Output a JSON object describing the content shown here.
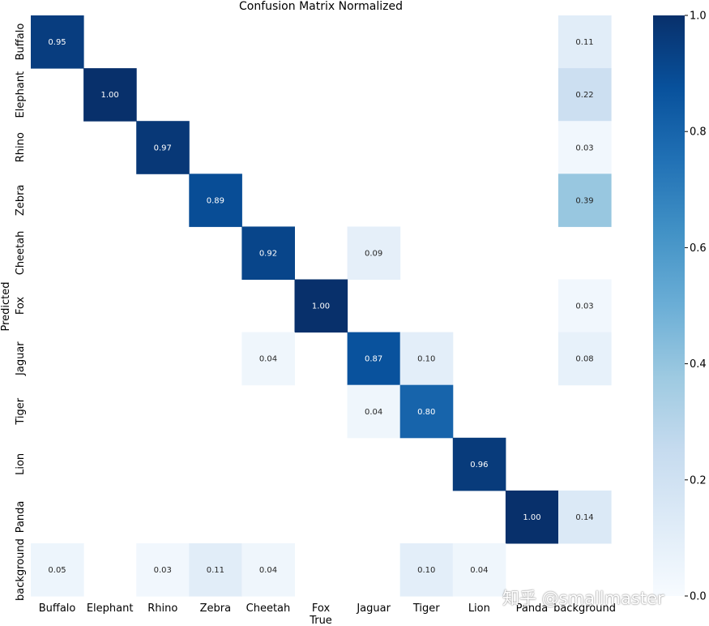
{
  "chart_data": {
    "type": "heatmap",
    "title": "Confusion Matrix Normalized",
    "xlabel": "True",
    "ylabel": "Predicted",
    "x_categories": [
      "Buffalo",
      "Elephant",
      "Rhino",
      "Zebra",
      "Cheetah",
      "Fox",
      "Jaguar",
      "Tiger",
      "Lion",
      "Panda",
      "background"
    ],
    "y_categories": [
      "Buffalo",
      "Elephant",
      "Rhino",
      "Zebra",
      "Cheetah",
      "Fox",
      "Jaguar",
      "Tiger",
      "Lion",
      "Panda",
      "background"
    ],
    "values": [
      [
        0.95,
        null,
        null,
        null,
        null,
        null,
        null,
        null,
        null,
        null,
        0.11
      ],
      [
        null,
        1.0,
        null,
        null,
        null,
        null,
        null,
        null,
        null,
        null,
        0.22
      ],
      [
        null,
        null,
        0.97,
        null,
        null,
        null,
        null,
        null,
        null,
        null,
        0.03
      ],
      [
        null,
        null,
        null,
        0.89,
        null,
        null,
        null,
        null,
        null,
        null,
        0.39
      ],
      [
        null,
        null,
        null,
        null,
        0.92,
        null,
        0.09,
        null,
        null,
        null,
        null
      ],
      [
        null,
        null,
        null,
        null,
        null,
        1.0,
        null,
        null,
        null,
        null,
        0.03
      ],
      [
        null,
        null,
        null,
        null,
        0.04,
        null,
        0.87,
        0.1,
        null,
        null,
        0.08
      ],
      [
        null,
        null,
        null,
        null,
        null,
        null,
        0.04,
        0.8,
        null,
        null,
        null
      ],
      [
        null,
        null,
        null,
        null,
        null,
        null,
        null,
        null,
        0.96,
        null,
        null
      ],
      [
        null,
        null,
        null,
        null,
        null,
        null,
        null,
        null,
        null,
        1.0,
        0.14
      ],
      [
        0.05,
        null,
        0.03,
        0.11,
        0.04,
        null,
        null,
        0.1,
        0.04,
        null,
        null
      ]
    ],
    "colorbar": {
      "min": 0.0,
      "max": 1.0,
      "ticks": [
        "0.0",
        "0.2",
        "0.4",
        "0.6",
        "0.8",
        "1.0"
      ],
      "colormap": "Blues"
    },
    "grid": false
  },
  "watermark": "知乎 @smallmaster"
}
